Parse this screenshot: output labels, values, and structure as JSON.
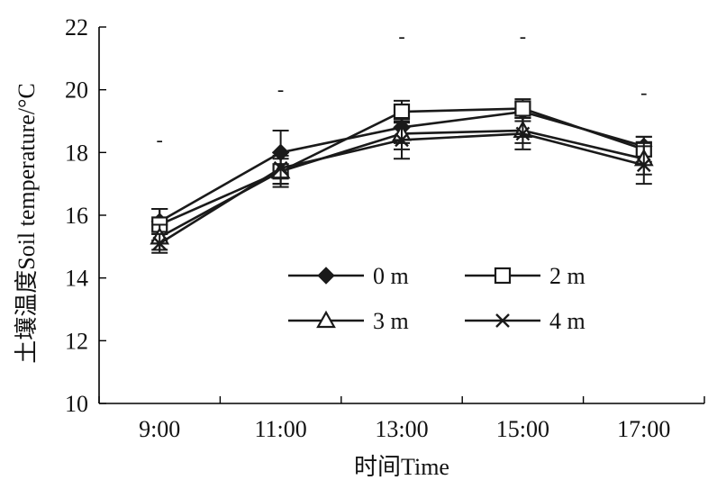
{
  "chart_data": {
    "type": "line",
    "xlabel": "时间Time",
    "ylabel": "土壤温度Soil temperature/°C",
    "categories": [
      "9:00",
      "11:00",
      "13:00",
      "15:00",
      "17:00"
    ],
    "yticks": [
      "10",
      "12",
      "14",
      "16",
      "18",
      "20",
      "22"
    ],
    "ylim": [
      10,
      22
    ],
    "grid": false,
    "legend_position": "lower-right inside",
    "significance_labels": [
      "-",
      "-",
      "-",
      "-",
      "-"
    ],
    "significance_y": [
      18.4,
      20.0,
      21.7,
      21.7,
      19.9
    ],
    "series": [
      {
        "name": "0 m",
        "marker": "filled-diamond",
        "values": [
          15.8,
          18.0,
          18.8,
          19.3,
          18.2
        ],
        "errors": [
          0.4,
          0.7,
          0.5,
          0.3,
          0.3
        ]
      },
      {
        "name": "2 m",
        "marker": "open-square",
        "values": [
          15.7,
          17.4,
          19.3,
          19.4,
          18.1
        ],
        "errors": [
          0.5,
          0.4,
          0.35,
          0.3,
          0.4
        ]
      },
      {
        "name": "3 m",
        "marker": "open-triangle",
        "values": [
          15.3,
          17.4,
          18.6,
          18.7,
          17.8
        ],
        "errors": [
          0.4,
          0.5,
          0.5,
          0.4,
          0.5
        ]
      },
      {
        "name": "4 m",
        "marker": "cross",
        "values": [
          15.1,
          17.5,
          18.4,
          18.6,
          17.6
        ],
        "errors": [
          0.3,
          0.5,
          0.6,
          0.5,
          0.6
        ]
      }
    ]
  }
}
